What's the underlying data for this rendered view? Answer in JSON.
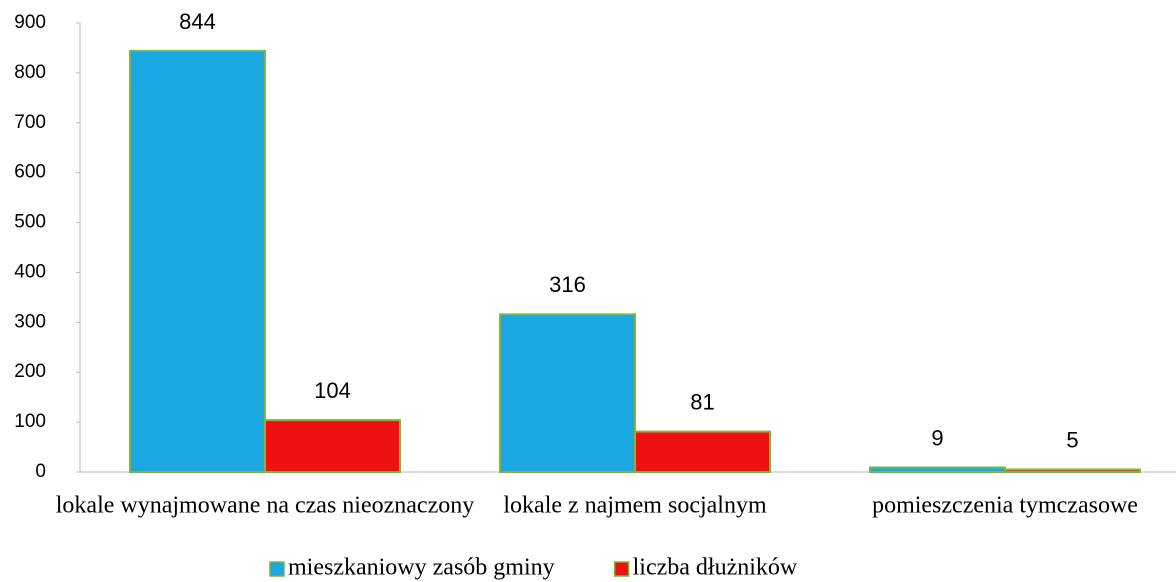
{
  "chart_data": {
    "type": "bar",
    "categories": [
      "lokale wynajmowane na czas nieoznaczony",
      "lokale z najmem socjalnym",
      "pomieszczenia tymczasowe"
    ],
    "series": [
      {
        "name": "mieszkaniowy zasób gminy",
        "color": "#1aa7e2",
        "values": [
          844,
          316,
          9
        ]
      },
      {
        "name": "liczba dłużników",
        "color": "#ee1111",
        "values": [
          104,
          81,
          5
        ]
      }
    ],
    "ylim": [
      0,
      900
    ],
    "yticks": [
      0,
      100,
      200,
      300,
      400,
      500,
      600,
      700,
      800,
      900
    ],
    "grid": false,
    "legend": "bottom"
  }
}
